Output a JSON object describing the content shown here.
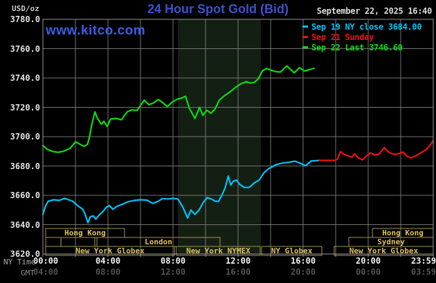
{
  "page": {
    "usd_oz_label": "USD/oz",
    "title": "24 Hour Spot Gold (Bid)",
    "datetime": "September 22, 2025 16:40",
    "watermark": "www.kitco.com",
    "ny_time_label": "NY Time",
    "gmt_label": "GMT"
  },
  "colors": {
    "background": "#000000",
    "title_blue": "#3b52cc",
    "watermark_blue": "#3d5ce6",
    "grid": "#757575",
    "border": "#999999",
    "shaded_band": "#141f14",
    "session_border": "#a3934c",
    "session_text": "#dcc05e",
    "cyan_series": "#00c3f7",
    "red_series": "#ee1111",
    "green_series": "#0cdd0c"
  },
  "legend": {
    "items": [
      {
        "color": "#00c3f7",
        "label": "Sep 19 NY close 3684.00"
      },
      {
        "color": "#ee1111",
        "label": "Sep 21 Sunday"
      },
      {
        "color": "#0cdd0c",
        "label": "Sep 22 Last 3746.60"
      }
    ]
  },
  "chart_data": {
    "type": "line",
    "title": "24 Hour Spot Gold (Bid)",
    "ylabel": "USD/oz",
    "xlim": [
      0,
      24
    ],
    "ylim": [
      3620,
      3780
    ],
    "grid": true,
    "shaded_span_hours": [
      8.3,
      13.4
    ],
    "y_ticks": [
      {
        "value": 3780,
        "label": "3780.0"
      },
      {
        "value": 3760,
        "label": "3760.0"
      },
      {
        "value": 3740,
        "label": "3740.0"
      },
      {
        "value": 3720,
        "label": "3720.0"
      },
      {
        "value": 3700,
        "label": "3700.0"
      },
      {
        "value": 3680,
        "label": "3680.0"
      },
      {
        "value": 3660,
        "label": "3660.0"
      },
      {
        "value": 3640,
        "label": "3640.0"
      },
      {
        "value": 3620,
        "label": "3620.0"
      }
    ],
    "x_ticks": [
      {
        "hour": 0,
        "ny": "00:00",
        "gmt": "04:00"
      },
      {
        "hour": 4,
        "ny": "04:00",
        "gmt": "08:00"
      },
      {
        "hour": 8,
        "ny": "08:00",
        "gmt": "12:00"
      },
      {
        "hour": 12,
        "ny": "12:00",
        "gmt": "16:00"
      },
      {
        "hour": 16,
        "ny": "16:00",
        "gmt": "20:00"
      },
      {
        "hour": 20,
        "ny": "20:00",
        "gmt": "00:00"
      },
      {
        "hour": 23.983,
        "ny": "23:59",
        "gmt": "03:59"
      }
    ],
    "sessions": [
      {
        "row": 0,
        "start_h": 0.17,
        "end_h": 5.02,
        "label": "Hong Kong"
      },
      {
        "row": 0,
        "start_h": 20.26,
        "end_h": 24,
        "label": "Hong Kong"
      },
      {
        "row": 1,
        "start_h": 0.17,
        "end_h": 1.11,
        "label": ""
      },
      {
        "row": 1,
        "start_h": 1.11,
        "end_h": 3.19,
        "label": ""
      },
      {
        "row": 1,
        "start_h": 3.32,
        "end_h": 10.89,
        "label": "London"
      },
      {
        "row": 1,
        "start_h": 18.81,
        "end_h": 24,
        "label": "Sydney"
      },
      {
        "row": 2,
        "start_h": 0.17,
        "end_h": 8.09,
        "label": "New York Globex"
      },
      {
        "row": 2,
        "start_h": 8.21,
        "end_h": 13.36,
        "label": "New York NYMEX"
      },
      {
        "row": 2,
        "start_h": 13.45,
        "end_h": 17.15,
        "label": "NY Globex"
      },
      {
        "row": 2,
        "start_h": 17.91,
        "end_h": 24,
        "label": "New York Globex"
      }
    ],
    "series": [
      {
        "name": "Sep 22 (today)",
        "color": "#0cdd0c",
        "points": [
          [
            0,
            3694
          ],
          [
            0.25,
            3691.5
          ],
          [
            0.58,
            3690
          ],
          [
            0.92,
            3689.3
          ],
          [
            1.25,
            3690
          ],
          [
            1.67,
            3692
          ],
          [
            2.0,
            3696.5
          ],
          [
            2.17,
            3695.5
          ],
          [
            2.42,
            3694
          ],
          [
            2.58,
            3693.5
          ],
          [
            2.75,
            3695
          ],
          [
            2.87,
            3700
          ],
          [
            3.0,
            3708
          ],
          [
            3.2,
            3716.9
          ],
          [
            3.35,
            3712.5
          ],
          [
            3.6,
            3708.5
          ],
          [
            3.75,
            3710.5
          ],
          [
            3.95,
            3707
          ],
          [
            4.17,
            3712
          ],
          [
            4.5,
            3712.5
          ],
          [
            4.83,
            3711.5
          ],
          [
            5.17,
            3716.8
          ],
          [
            5.45,
            3718.2
          ],
          [
            5.8,
            3718
          ],
          [
            6.23,
            3724.9
          ],
          [
            6.52,
            3721.8
          ],
          [
            6.8,
            3723
          ],
          [
            7.08,
            3725.3
          ],
          [
            7.33,
            3723.5
          ],
          [
            7.65,
            3720.5
          ],
          [
            7.93,
            3723.4
          ],
          [
            8.25,
            3725.5
          ],
          [
            8.58,
            3726.5
          ],
          [
            8.77,
            3727.6
          ],
          [
            9.0,
            3719.5
          ],
          [
            9.35,
            3712.4
          ],
          [
            9.63,
            3720
          ],
          [
            9.83,
            3714.5
          ],
          [
            10.08,
            3718
          ],
          [
            10.33,
            3716
          ],
          [
            10.58,
            3718.8
          ],
          [
            10.85,
            3725
          ],
          [
            11.17,
            3728
          ],
          [
            11.5,
            3730.5
          ],
          [
            11.83,
            3733.5
          ],
          [
            12.17,
            3736
          ],
          [
            12.5,
            3737.5
          ],
          [
            12.75,
            3736.5
          ],
          [
            13.0,
            3737
          ],
          [
            13.25,
            3739.5
          ],
          [
            13.5,
            3745
          ],
          [
            13.75,
            3746.5
          ],
          [
            14.0,
            3745.5
          ],
          [
            14.25,
            3744.5
          ],
          [
            14.6,
            3744
          ],
          [
            15.0,
            3748.3
          ],
          [
            15.45,
            3743.6
          ],
          [
            15.78,
            3747
          ],
          [
            16.08,
            3744.8
          ],
          [
            16.33,
            3745.5
          ],
          [
            16.67,
            3746.6
          ]
        ]
      },
      {
        "name": "Sep 19 NY close",
        "color": "#00c3f7",
        "points": [
          [
            0,
            3647
          ],
          [
            0.17,
            3653
          ],
          [
            0.33,
            3656
          ],
          [
            0.67,
            3657
          ],
          [
            1.0,
            3656.5
          ],
          [
            1.33,
            3658
          ],
          [
            1.58,
            3657
          ],
          [
            1.83,
            3656
          ],
          [
            2.17,
            3652.7
          ],
          [
            2.45,
            3650.5
          ],
          [
            2.6,
            3647
          ],
          [
            2.77,
            3641.3
          ],
          [
            2.92,
            3645.5
          ],
          [
            3.1,
            3646
          ],
          [
            3.25,
            3643.8
          ],
          [
            3.45,
            3646.5
          ],
          [
            3.65,
            3648.5
          ],
          [
            3.9,
            3651.8
          ],
          [
            4.1,
            3653
          ],
          [
            4.3,
            3650.5
          ],
          [
            4.55,
            3652.5
          ],
          [
            4.9,
            3654
          ],
          [
            5.2,
            3655.5
          ],
          [
            5.6,
            3656.5
          ],
          [
            6.0,
            3657
          ],
          [
            6.4,
            3656.7
          ],
          [
            6.75,
            3654.5
          ],
          [
            7.1,
            3656
          ],
          [
            7.35,
            3657.8
          ],
          [
            7.7,
            3657.5
          ],
          [
            8.0,
            3658
          ],
          [
            8.3,
            3657.5
          ],
          [
            8.6,
            3652
          ],
          [
            8.9,
            3644.5
          ],
          [
            9.1,
            3650
          ],
          [
            9.35,
            3647
          ],
          [
            9.6,
            3650
          ],
          [
            9.85,
            3655
          ],
          [
            10.1,
            3658.5
          ],
          [
            10.35,
            3657.5
          ],
          [
            10.6,
            3656
          ],
          [
            10.8,
            3655.9
          ],
          [
            11.0,
            3660
          ],
          [
            11.2,
            3665
          ],
          [
            11.4,
            3673.2
          ],
          [
            11.55,
            3667
          ],
          [
            11.7,
            3669.5
          ],
          [
            11.9,
            3670.5
          ],
          [
            12.1,
            3667.5
          ],
          [
            12.4,
            3665.3
          ],
          [
            12.7,
            3665.5
          ],
          [
            13.0,
            3668.5
          ],
          [
            13.3,
            3670.5
          ],
          [
            13.6,
            3675.5
          ],
          [
            13.85,
            3678
          ],
          [
            14.1,
            3679.5
          ],
          [
            14.35,
            3681
          ],
          [
            14.7,
            3682
          ],
          [
            15.1,
            3682.5
          ],
          [
            15.5,
            3683.3
          ],
          [
            15.8,
            3682
          ],
          [
            16.15,
            3680.2
          ],
          [
            16.5,
            3683.5
          ],
          [
            16.8,
            3683.6
          ],
          [
            17.0,
            3683.8
          ]
        ]
      },
      {
        "name": "Sep 21 Sunday",
        "color": "#ee1111",
        "points": [
          [
            17.0,
            3683.8
          ],
          [
            17.9,
            3683.8
          ],
          [
            18.1,
            3684.5
          ],
          [
            18.3,
            3689.8
          ],
          [
            18.5,
            3688
          ],
          [
            18.75,
            3687
          ],
          [
            19.0,
            3686
          ],
          [
            19.15,
            3688.3
          ],
          [
            19.4,
            3685.5
          ],
          [
            19.65,
            3684.2
          ],
          [
            19.9,
            3687
          ],
          [
            20.15,
            3689
          ],
          [
            20.4,
            3687.5
          ],
          [
            20.65,
            3688
          ],
          [
            21.0,
            3692.5
          ],
          [
            21.2,
            3690
          ],
          [
            21.4,
            3688.5
          ],
          [
            21.65,
            3688
          ],
          [
            21.9,
            3688.5
          ],
          [
            22.15,
            3689.5
          ],
          [
            22.35,
            3687
          ],
          [
            22.6,
            3685.5
          ],
          [
            22.85,
            3686.5
          ],
          [
            23.1,
            3688
          ],
          [
            23.3,
            3689.5
          ],
          [
            23.55,
            3691
          ],
          [
            23.8,
            3694
          ],
          [
            23.98,
            3697
          ]
        ]
      }
    ]
  }
}
